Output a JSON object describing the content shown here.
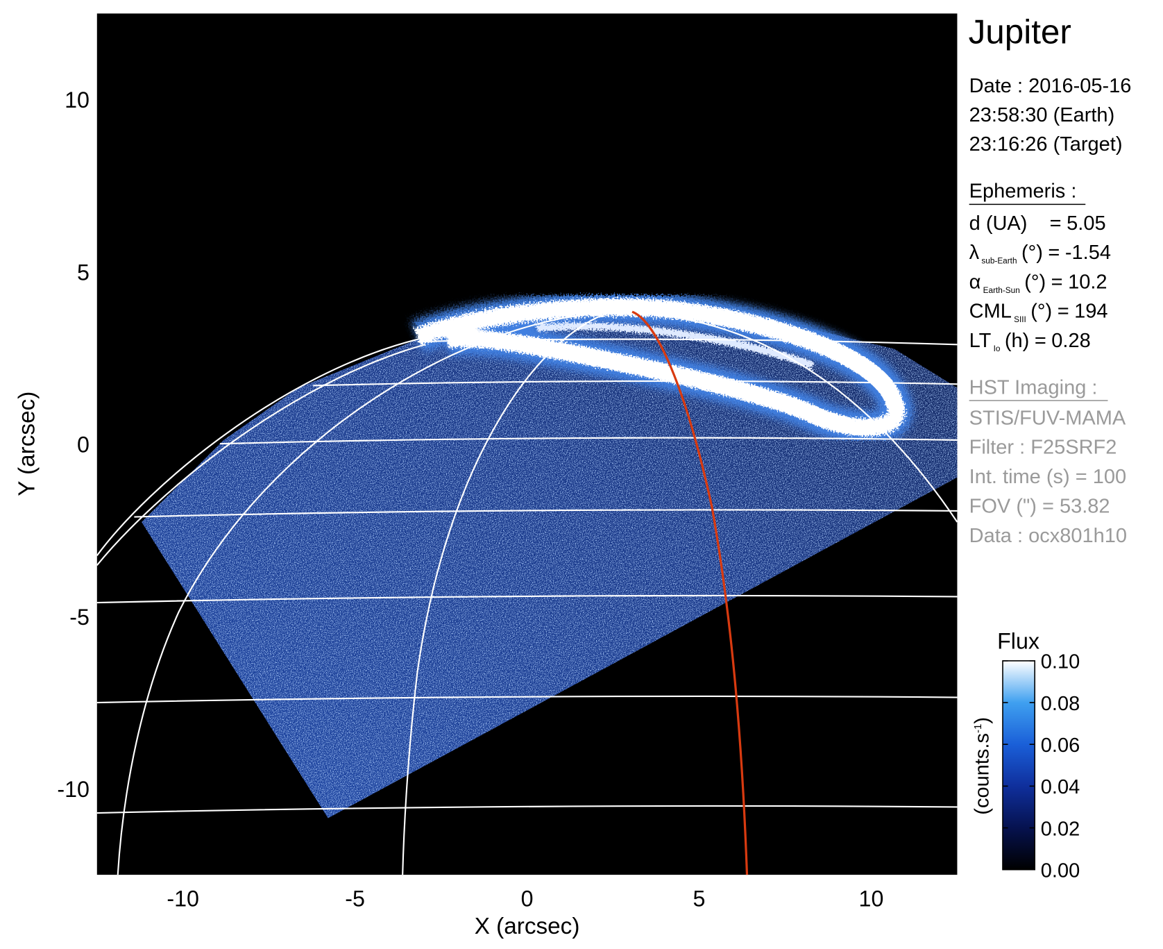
{
  "chart_data": {
    "type": "image",
    "title": "Jupiter",
    "xlabel": "X (arcsec)",
    "ylabel": "Y (arcsec)",
    "xlim": [
      -12.5,
      12.5
    ],
    "ylim": [
      -12.5,
      12.5
    ],
    "xticks": [
      -10,
      -5,
      0,
      5,
      10
    ],
    "yticks": [
      -10,
      -5,
      0,
      5,
      10
    ],
    "date": [
      "Date : 2016-05-16",
      "23:58:30 (Earth)",
      "23:16:26 (Target)"
    ],
    "ephemeris": {
      "heading": "Ephemeris :",
      "rows": [
        {
          "symbol": "d (UA)",
          "relation": "=",
          "value": 5.05
        },
        {
          "symbol": "λ",
          "subscript": "sub-Earth",
          "unit": "(°)",
          "relation": "=",
          "value": -1.54
        },
        {
          "symbol": "α",
          "subscript": "Earth-Sun",
          "unit": "(°)",
          "relation": "=",
          "value": 10.2
        },
        {
          "symbol": "CML",
          "subscript": "SIII",
          "unit": "(°)",
          "relation": "=",
          "value": 194
        },
        {
          "symbol": "LT",
          "subscript": "Io",
          "unit": "(h)",
          "relation": "=",
          "value": 0.28
        }
      ]
    },
    "imaging": {
      "heading": "HST Imaging :",
      "lines": [
        "STIS/FUV-MAMA",
        "Filter : F25SRF2",
        "Int. time (s) = 100",
        "FOV (\") = 53.82",
        "Data : ocx801h10"
      ]
    },
    "colorbar": {
      "title": "Flux",
      "label": "(counts.s",
      "label_sup": "-1",
      "label_end": ")",
      "lim": [
        0,
        0.1
      ],
      "ticks": [
        {
          "value": 0,
          "label": "0.00"
        },
        0.02,
        0.04,
        0.06,
        0.08,
        {
          "value": 0.1,
          "label": "0.10"
        }
      ],
      "colormap": [
        "#000000",
        "#06124f",
        "#0f2f9c",
        "#1a5fd8",
        "#3fa0f0",
        "#ffffff"
      ]
    }
  }
}
